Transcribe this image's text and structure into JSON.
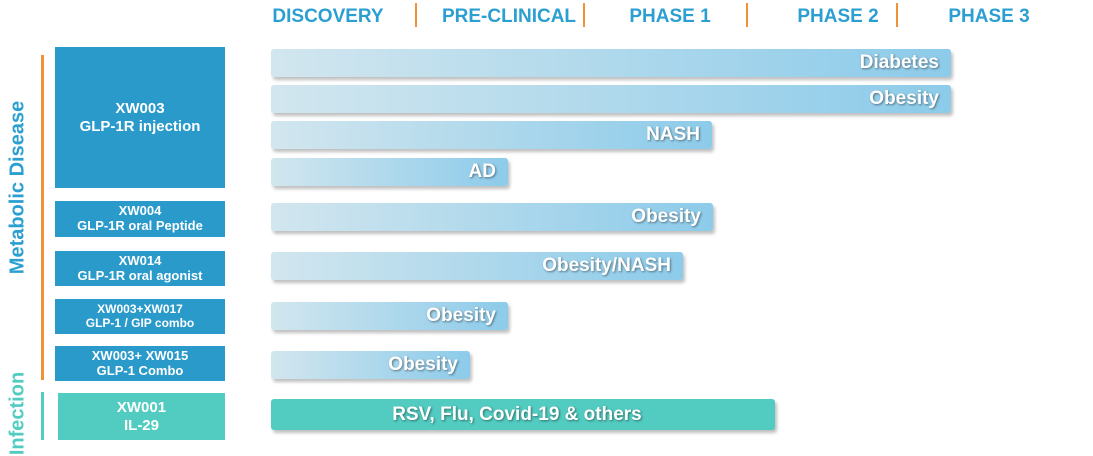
{
  "phases": [
    "DISCOVERY",
    "PRE-CLINICAL",
    "PHASE 1",
    "PHASE 2",
    "PHASE 3"
  ],
  "groups": [
    {
      "label": "Metabolic Disease",
      "programs": [
        {
          "code": "XW003",
          "name": "GLP-1R injection",
          "indications": [
            "Diabetes",
            "Obesity",
            "NASH",
            "AD"
          ]
        },
        {
          "code": "XW004",
          "name": "GLP-1R oral Peptide",
          "indications": [
            "Obesity"
          ]
        },
        {
          "code": "XW014",
          "name": "GLP-1R oral agonist",
          "indications": [
            "Obesity/NASH"
          ]
        },
        {
          "code": "XW003+XW017",
          "name": "GLP-1 / GIP combo",
          "indications": [
            "Obesity"
          ]
        },
        {
          "code": "XW003+ XW015",
          "name": "GLP-1 Combo",
          "indications": [
            "Obesity"
          ]
        }
      ]
    },
    {
      "label": "Infection",
      "programs": [
        {
          "code": "XW001",
          "name": "IL-29",
          "indications": [
            "RSV,  Flu, Covid-19 & others"
          ]
        }
      ]
    }
  ]
}
